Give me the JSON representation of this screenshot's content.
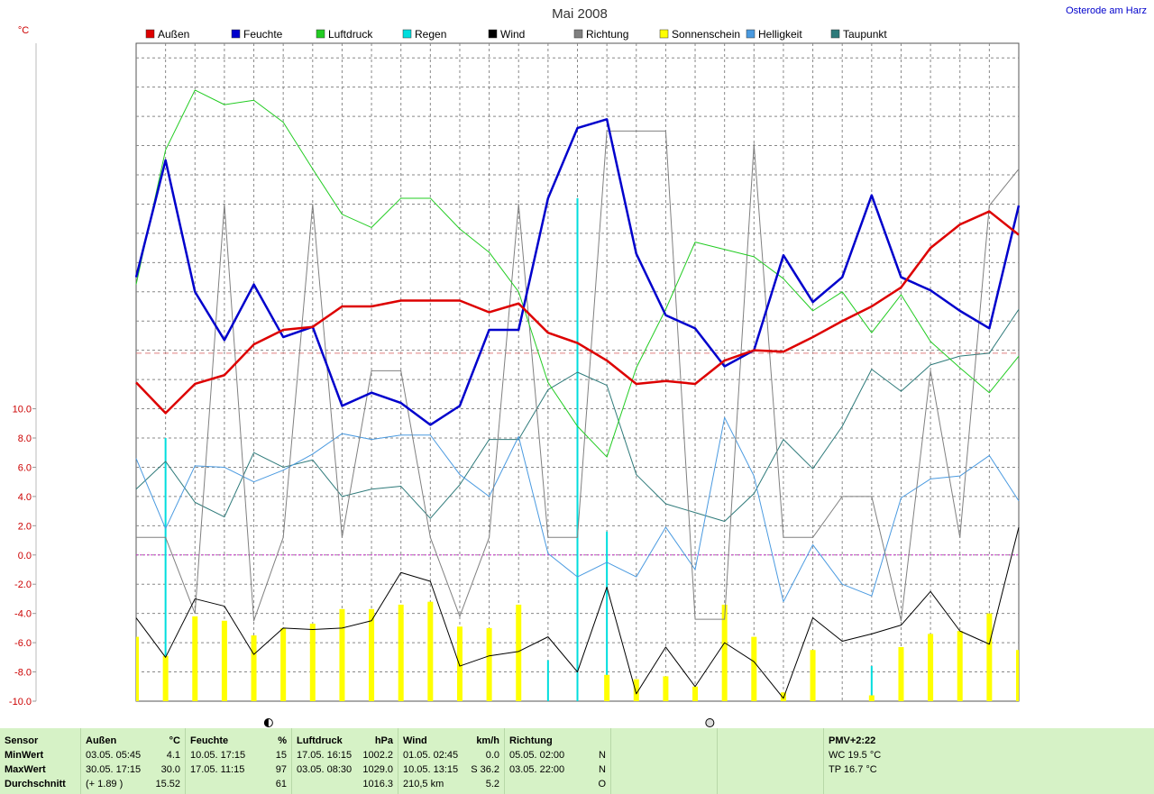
{
  "station": "Osterode am Harz",
  "chart_data": {
    "type": "line",
    "title": "Mai 2008",
    "ylabel": "°C",
    "ylim": [
      -10,
      35
    ],
    "yticks": [
      10.0,
      8.0,
      6.0,
      4.0,
      2.0,
      0.0,
      -2.0,
      -4.0,
      -6.0,
      -8.0,
      -10.0
    ],
    "ytick_labels": [
      "10.0",
      "8.0",
      "6.0",
      "4.0",
      "2.0",
      "0.0",
      "-2.0",
      "-4.0",
      "-6.0",
      "-8.0",
      "-10.0"
    ],
    "x": [
      1,
      2,
      3,
      4,
      5,
      6,
      7,
      8,
      9,
      10,
      11,
      12,
      13,
      14,
      15,
      16,
      17,
      18,
      19,
      20,
      21,
      22,
      23,
      24,
      25,
      26,
      27,
      28,
      29,
      30,
      31
    ],
    "legend_position": "top",
    "grid": true,
    "reference_line": 13.8,
    "series": [
      {
        "name": "Außen",
        "color": "#dd0000",
        "width": 2.5,
        "values": [
          11.8,
          9.7,
          11.7,
          12.3,
          14.4,
          15.4,
          15.6,
          17.0,
          17.0,
          17.4,
          17.4,
          17.4,
          16.6,
          17.2,
          15.2,
          14.5,
          13.3,
          11.7,
          11.9,
          11.7,
          13.3,
          14.0,
          13.9,
          14.9,
          16.0,
          17.0,
          18.3,
          21.0,
          22.6,
          23.5,
          21.9
        ],
        "kind": "line"
      },
      {
        "name": "Feuchte",
        "color": "#0000cc",
        "width": 2.5,
        "values": [
          19.0,
          27.0,
          18.0,
          14.7,
          18.5,
          14.9,
          15.6,
          10.2,
          11.1,
          10.4,
          8.9,
          10.2,
          15.4,
          15.4,
          24.4,
          29.2,
          29.8,
          20.6,
          16.4,
          15.5,
          12.9,
          14.0,
          20.5,
          17.3,
          19.0,
          24.6,
          19.0,
          18.1,
          16.7,
          15.5,
          23.9
        ],
        "kind": "line"
      },
      {
        "name": "Luftdruck",
        "color": "#22cc22",
        "width": 1,
        "values": [
          18.5,
          27.7,
          31.8,
          30.8,
          31.1,
          29.6,
          26.4,
          23.3,
          22.4,
          24.4,
          24.4,
          22.3,
          20.7,
          18.0,
          11.8,
          8.8,
          6.7,
          12.8,
          16.8,
          21.4,
          20.9,
          20.4,
          18.9,
          16.7,
          18.0,
          15.2,
          17.8,
          14.6,
          12.8,
          11.1,
          13.6
        ],
        "kind": "line"
      },
      {
        "name": "Regen",
        "color": "#00dddd",
        "width": 2,
        "values": [
          -6.5,
          8.0,
          -10.0,
          -10.0,
          -10.0,
          -10.0,
          -10.0,
          -10.0,
          -10.0,
          -10.0,
          -10.0,
          -9.8,
          -10.0,
          -10.0,
          -7.2,
          24.4,
          1.6,
          -10.0,
          -10.0,
          -10.0,
          -10.0,
          -10.0,
          -10.0,
          -9.0,
          -10.0,
          -7.6,
          -10.0,
          -10.0,
          -10.0,
          -10.0,
          -7.2
        ],
        "kind": "bar"
      },
      {
        "name": "Wind",
        "color": "#000000",
        "width": 1,
        "values": [
          -4.3,
          -7.0,
          -3.0,
          -3.5,
          -6.8,
          -5.0,
          -5.1,
          -5.0,
          -4.5,
          -1.2,
          -1.8,
          -7.6,
          -6.9,
          -6.6,
          -5.6,
          -8.0,
          -2.2,
          -9.5,
          -6.3,
          -9.0,
          -6.0,
          -7.3,
          -9.8,
          -4.3,
          -5.9,
          -5.4,
          -4.8,
          -2.5,
          -5.2,
          -6.1,
          1.9
        ],
        "kind": "line"
      },
      {
        "name": "Richtung",
        "color": "#808080",
        "width": 1,
        "values": [
          1.2,
          1.2,
          -4.0,
          24.0,
          -4.5,
          1.2,
          24.0,
          1.2,
          12.6,
          12.6,
          1.2,
          -4.2,
          1.2,
          24.0,
          1.2,
          1.2,
          29.0,
          29.0,
          29.0,
          -4.4,
          -4.4,
          28.1,
          1.2,
          1.2,
          4.0,
          4.0,
          -4.5,
          12.6,
          1.2,
          23.9,
          26.4
        ],
        "kind": "line"
      },
      {
        "name": "Sonnenschein",
        "color": "#ffff00",
        "width": 6,
        "values": [
          -5.6,
          -6.9,
          -4.2,
          -4.5,
          -5.5,
          -5.0,
          -4.7,
          -3.7,
          -3.7,
          -3.4,
          -3.2,
          -4.9,
          -5.0,
          -3.4,
          -10.0,
          -10.0,
          -8.2,
          -8.5,
          -8.3,
          -9.0,
          -3.4,
          -5.6,
          -9.4,
          -6.5,
          -10.0,
          -9.6,
          -6.3,
          -5.4,
          -5.2,
          -4.0,
          -6.5
        ],
        "kind": "bar"
      },
      {
        "name": "Helligkeit",
        "color": "#4a9ae0",
        "width": 1,
        "values": [
          6.6,
          1.8,
          6.1,
          6.0,
          5.0,
          5.8,
          6.9,
          8.3,
          7.9,
          8.2,
          8.2,
          5.5,
          4.0,
          8.1,
          0.1,
          -1.5,
          -0.5,
          -1.5,
          1.9,
          -1.0,
          9.4,
          5.4,
          -3.2,
          0.7,
          -2.0,
          -2.8,
          3.9,
          5.2,
          5.4,
          6.8,
          3.7
        ],
        "kind": "line"
      },
      {
        "name": "Taupunkt",
        "color": "#2e7a7a",
        "width": 1,
        "values": [
          4.5,
          6.4,
          3.6,
          2.6,
          7.0,
          6.0,
          6.5,
          4.0,
          4.5,
          4.7,
          2.5,
          4.8,
          7.9,
          7.9,
          11.3,
          12.5,
          11.6,
          5.5,
          3.5,
          2.9,
          2.3,
          4.2,
          7.9,
          5.9,
          8.8,
          12.7,
          11.2,
          13.0,
          13.6,
          13.8,
          16.8
        ],
        "kind": "line"
      }
    ]
  },
  "moon_markers": {
    "new_moon_day": 5.5,
    "full_moon_day": 20.5
  },
  "footer": {
    "sensor": {
      "h": "Sensor",
      "r1": "MinWert",
      "r2": "MaxWert",
      "r3": "Durchschnitt"
    },
    "aussen": {
      "h": "Außen",
      "u": "°C",
      "r1a": "03.05.  05:45",
      "r1b": "4.1",
      "r2a": "30.05.  17:15",
      "r2b": "30.0",
      "r3a": "(+ 1.89 )",
      "r3b": "15.52"
    },
    "feuchte": {
      "h": "Feuchte",
      "u": "%",
      "r1a": "10.05.  17:15",
      "r1b": "15",
      "r2a": "17.05.  11:15",
      "r2b": "97",
      "r3a": "",
      "r3b": "61"
    },
    "luftdruck": {
      "h": "Luftdruck",
      "u": "hPa",
      "r1a": "17.05.  16:15",
      "r1b": "1002.2",
      "r2a": "03.05.  08:30",
      "r2b": "1029.0",
      "r3a": "",
      "r3b": "1016.3"
    },
    "wind": {
      "h": "Wind",
      "u": "km/h",
      "r1a": "01.05.  02:45",
      "r1b": "0.0",
      "r2a": "10.05.  13:15",
      "r2b": "S 36.2",
      "r3a": "210,5 km",
      "r3b": "5.2"
    },
    "richtung": {
      "h": "Richtung",
      "r1a": "05.05.  02:00",
      "r1b": "N",
      "r2a": "03.05.  22:00",
      "r2b": "N",
      "r3a": "",
      "r3b": "O"
    },
    "pmv": {
      "h": "PMV+2:22",
      "r1": "WC 19.5 °C",
      "r2": "TP 16.7 °C"
    }
  }
}
